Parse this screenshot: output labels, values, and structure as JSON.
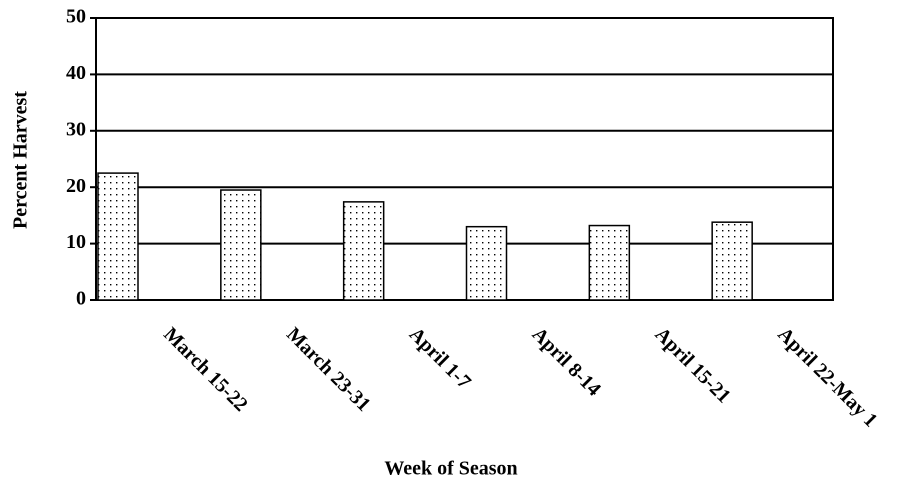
{
  "chart_data": {
    "type": "bar",
    "x_label": "Week of Season",
    "y_label": "Percent Harvest",
    "categories": [
      "March 15-22",
      "March 23-31",
      "April 1-7",
      "April 8-14",
      "April 15-21",
      "April 22-May 1"
    ],
    "values": [
      22.5,
      19.5,
      17.4,
      13,
      13.2,
      13.8
    ],
    "ylim": [
      0,
      50
    ],
    "yticks": [
      0,
      10,
      20,
      30,
      40,
      50
    ],
    "grid": true
  }
}
